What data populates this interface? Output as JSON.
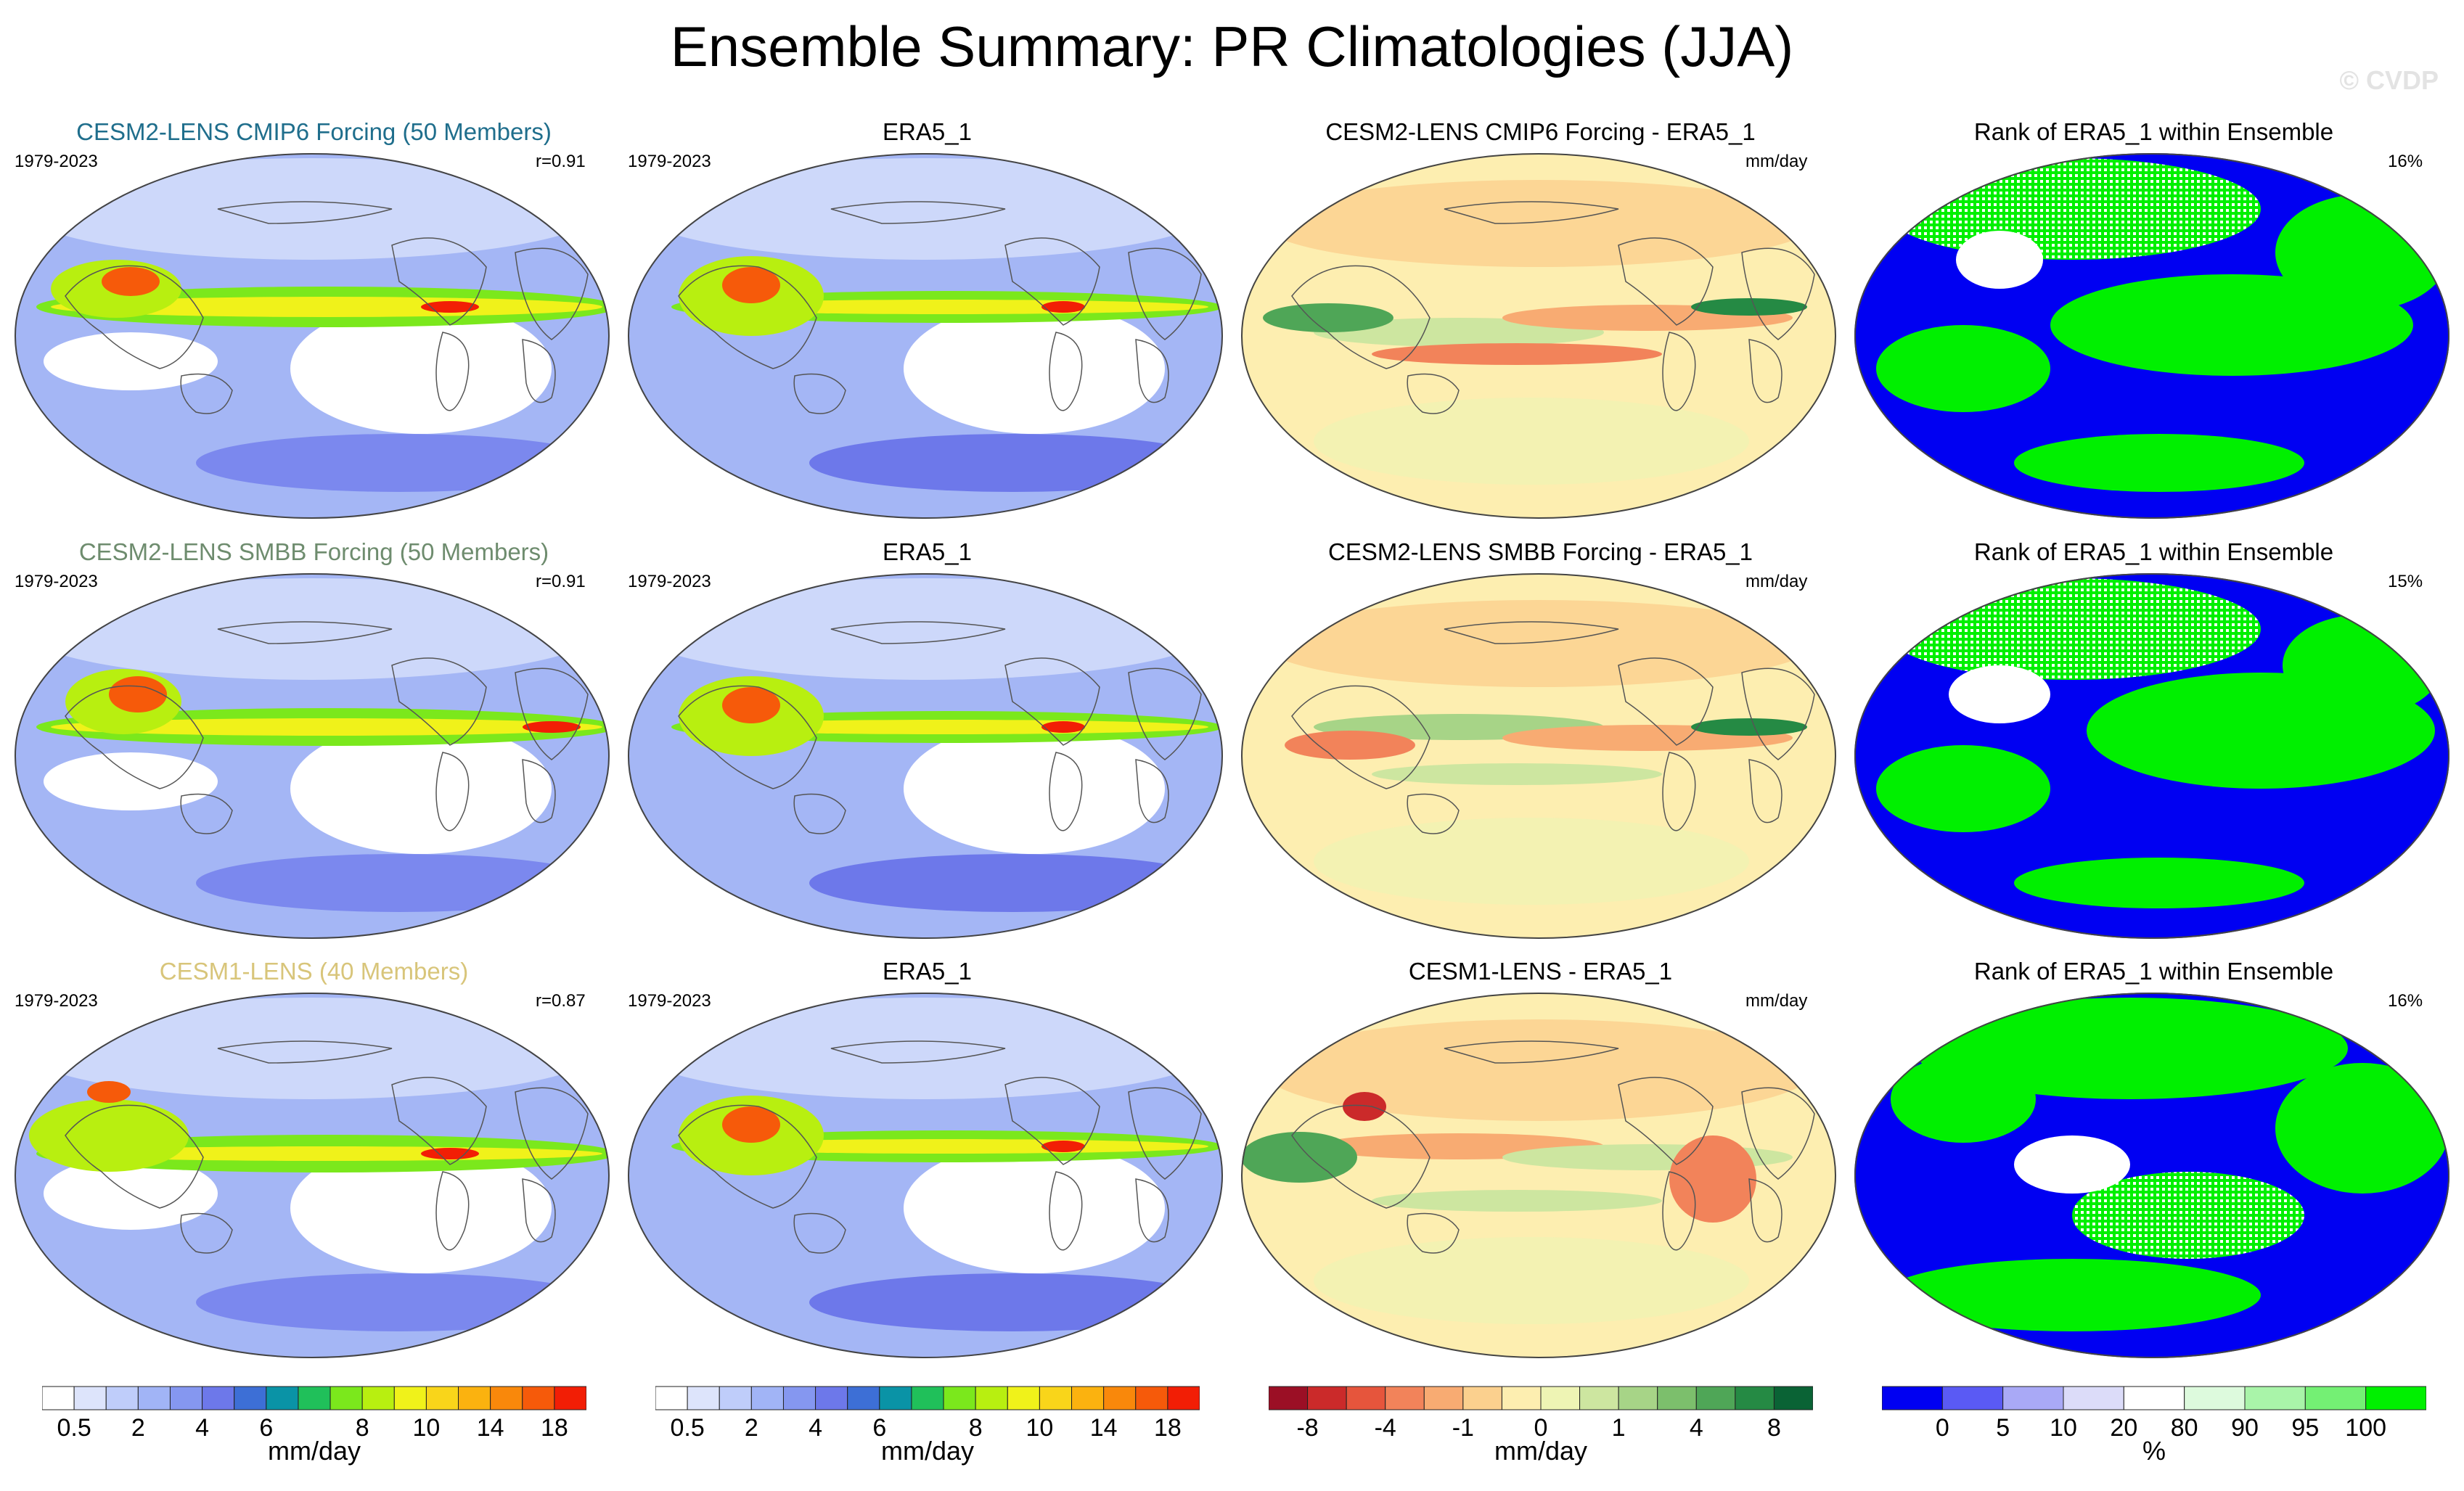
{
  "title": "Ensemble Summary: PR Climatologies (JJA)",
  "watermark": "© CVDP",
  "rows": [
    {
      "ensemble": {
        "title": "CESM2-LENS CMIP6 Forcing (50 Members)",
        "title_color": "#1f6e8c",
        "years": "1979-2023",
        "corr": "r=0.91"
      },
      "obs": {
        "title": "ERA5_1",
        "years": "1979-2023"
      },
      "diff": {
        "title": "CESM2-LENS CMIP6 Forcing - ERA5_1",
        "units": "mm/day"
      },
      "rank": {
        "title": "Rank of ERA5_1 within Ensemble",
        "pct": "16%"
      }
    },
    {
      "ensemble": {
        "title": "CESM2-LENS SMBB Forcing (50 Members)",
        "title_color": "#6e8c6e",
        "years": "1979-2023",
        "corr": "r=0.91"
      },
      "obs": {
        "title": "ERA5_1",
        "years": "1979-2023"
      },
      "diff": {
        "title": "CESM2-LENS SMBB Forcing - ERA5_1",
        "units": "mm/day"
      },
      "rank": {
        "title": "Rank of ERA5_1 within Ensemble",
        "pct": "15%"
      }
    },
    {
      "ensemble": {
        "title": "CESM1-LENS (40 Members)",
        "title_color": "#d8c57a",
        "years": "1979-2023",
        "corr": "r=0.87"
      },
      "obs": {
        "title": "ERA5_1",
        "years": "1979-2023"
      },
      "diff": {
        "title": "CESM1-LENS - ERA5_1",
        "units": "mm/day"
      },
      "rank": {
        "title": "Rank of ERA5_1 within Ensemble",
        "pct": "16%"
      }
    }
  ],
  "colorbars": [
    {
      "name": "pr-colorbar-1",
      "colors": [
        "#ffffff",
        "#dde4fb",
        "#bfcdfa",
        "#a1b4f6",
        "#8597f0",
        "#6d78ea",
        "#3d6fd6",
        "#0a93a6",
        "#20c05a",
        "#7be81c",
        "#b8ef10",
        "#f0f21a",
        "#f9d51a",
        "#fbb20f",
        "#f9880b",
        "#f65a0a",
        "#f21e05"
      ],
      "labels": [
        "0.5",
        "2",
        "4",
        "6",
        "8",
        "10",
        "14",
        "18"
      ],
      "units": "mm/day"
    },
    {
      "name": "pr-colorbar-2",
      "colors": [
        "#ffffff",
        "#dde4fb",
        "#bfcdfa",
        "#a1b4f6",
        "#8597f0",
        "#6d78ea",
        "#3d6fd6",
        "#0a93a6",
        "#20c05a",
        "#7be81c",
        "#b8ef10",
        "#f0f21a",
        "#f9d51a",
        "#fbb20f",
        "#f9880b",
        "#f65a0a",
        "#f21e05"
      ],
      "labels": [
        "0.5",
        "2",
        "4",
        "6",
        "8",
        "10",
        "14",
        "18"
      ],
      "units": "mm/day"
    },
    {
      "name": "diff-colorbar",
      "colors": [
        "#9b0f25",
        "#cb2a2a",
        "#e6553c",
        "#f2835a",
        "#f8ab72",
        "#fbd08e",
        "#fdeeb0",
        "#eef4b4",
        "#cde6a0",
        "#a7d487",
        "#7cbf6c",
        "#4fa657",
        "#258a44",
        "#0a6335"
      ],
      "labels": [
        "-8",
        "-4",
        "-1",
        "0",
        "1",
        "4",
        "8"
      ],
      "units": "mm/day"
    },
    {
      "name": "rank-colorbar",
      "colors": [
        "#0000f2",
        "#5a5af4",
        "#a9a9f6",
        "#dcdcf9",
        "#ffffff",
        "#ddfadd",
        "#a9f4a9",
        "#74f074",
        "#00f000"
      ],
      "labels": [
        "0",
        "5",
        "10",
        "20",
        "80",
        "90",
        "95",
        "100"
      ],
      "units": "%"
    }
  ]
}
